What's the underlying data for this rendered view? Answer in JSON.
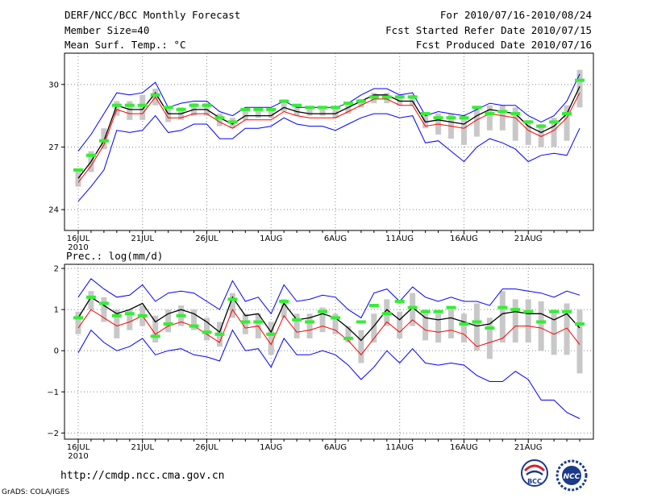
{
  "header": {
    "title": "DERF/NCC/BCC Monthly Forecast",
    "member_size": "Member Size=40",
    "variable": "Mean Surf. Temp.: °C",
    "period": "For 2010/07/16-2010/08/24",
    "start_date": "Fcst Started Refer Date 2010/07/15",
    "produced_date": "Fcst Produced Date 2010/07/16"
  },
  "precip_label": "Prec.: log(mm/d)",
  "footer": {
    "url": "http://cmdp.ncc.cma.gov.cn",
    "credit": "GrADS: COLA/IGES",
    "logo1": "BCC",
    "logo2": "NCC"
  },
  "colors": {
    "envelope": "#0000ff",
    "mean": "#000000",
    "median": "#ff0000",
    "bar": "#c8c8c8",
    "observed": "#33ee33"
  },
  "chart_data": [
    {
      "type": "line",
      "name": "Mean Surf. Temp.",
      "xlabel": "",
      "ylabel": "°C",
      "ylim": [
        23,
        31.5
      ],
      "yticks": [
        24,
        27,
        30
      ],
      "ytick_labels": [
        "24",
        "27",
        "30"
      ],
      "x_day_range": [
        1,
        40
      ],
      "xticks": [
        1,
        6,
        11,
        16,
        21,
        26,
        31,
        36
      ],
      "xtick_labels": [
        "16JUL",
        "21JUL",
        "26JUL",
        "1AUG",
        "6AUG",
        "11AUG",
        "16AUG",
        "21AUG"
      ],
      "xtick_year": "2010",
      "series": [
        {
          "name": "upper",
          "values": [
            26.8,
            27.6,
            28.6,
            29.6,
            29.5,
            29.6,
            30.1,
            28.9,
            29.1,
            29.2,
            29.2,
            28.7,
            28.5,
            28.9,
            28.9,
            28.9,
            29.2,
            28.9,
            28.9,
            28.9,
            28.9,
            29.1,
            29.5,
            29.8,
            29.8,
            29.5,
            29.6,
            28.5,
            28.7,
            28.6,
            28.5,
            28.8,
            29.1,
            29.0,
            29.0,
            28.5,
            28.2,
            28.5,
            29.2,
            30.5
          ]
        },
        {
          "name": "mean",
          "values": [
            25.5,
            26.3,
            27.3,
            29.0,
            28.8,
            28.8,
            29.6,
            28.6,
            28.6,
            28.8,
            28.8,
            28.4,
            28.1,
            28.5,
            28.5,
            28.5,
            28.9,
            28.7,
            28.6,
            28.6,
            28.6,
            28.9,
            29.2,
            29.5,
            29.5,
            29.2,
            29.2,
            28.2,
            28.3,
            28.2,
            28.1,
            28.5,
            28.8,
            28.7,
            28.6,
            28.0,
            27.7,
            28.0,
            28.6,
            29.9
          ]
        },
        {
          "name": "median",
          "values": [
            25.3,
            26.1,
            27.1,
            28.8,
            28.6,
            28.6,
            29.4,
            28.4,
            28.4,
            28.6,
            28.6,
            28.2,
            27.9,
            28.3,
            28.3,
            28.3,
            28.7,
            28.5,
            28.4,
            28.4,
            28.4,
            28.7,
            29.0,
            29.3,
            29.3,
            29.0,
            29.0,
            28.0,
            28.1,
            28.0,
            27.9,
            28.3,
            28.6,
            28.5,
            28.4,
            27.8,
            27.5,
            27.8,
            28.4,
            29.6
          ]
        },
        {
          "name": "lower",
          "values": [
            24.4,
            25.1,
            25.9,
            27.8,
            27.7,
            27.8,
            28.5,
            27.7,
            27.8,
            28.1,
            28.1,
            27.4,
            27.4,
            27.9,
            27.9,
            28.0,
            28.4,
            28.1,
            28.0,
            28.0,
            27.8,
            28.1,
            28.4,
            28.6,
            28.6,
            28.4,
            28.5,
            27.2,
            27.3,
            26.8,
            26.3,
            27.0,
            27.4,
            27.2,
            26.9,
            26.3,
            26.6,
            26.7,
            26.6,
            27.9
          ]
        },
        {
          "name": "box_high",
          "values": [
            25.9,
            26.8,
            27.9,
            29.2,
            29.2,
            29.5,
            29.8,
            28.9,
            28.9,
            29.1,
            29.1,
            28.6,
            28.4,
            28.8,
            28.8,
            28.8,
            29.2,
            28.9,
            28.9,
            28.9,
            28.9,
            29.1,
            29.3,
            29.6,
            29.6,
            29.5,
            29.5,
            28.6,
            28.6,
            28.6,
            28.5,
            28.9,
            29.0,
            29.0,
            28.9,
            28.3,
            28.1,
            28.4,
            29.0,
            30.7
          ]
        },
        {
          "name": "box_low",
          "values": [
            25.1,
            25.8,
            26.9,
            28.5,
            28.3,
            28.3,
            29.0,
            28.2,
            28.3,
            28.5,
            28.5,
            28.0,
            27.9,
            28.3,
            28.4,
            28.4,
            28.7,
            28.5,
            28.5,
            28.5,
            28.4,
            28.6,
            28.9,
            29.1,
            29.1,
            29.0,
            29.0,
            27.9,
            27.6,
            27.4,
            27.1,
            27.5,
            27.8,
            27.8,
            27.3,
            27.1,
            27.0,
            27.0,
            27.3,
            28.9
          ]
        },
        {
          "name": "observed",
          "values": [
            25.9,
            26.6,
            27.3,
            29.0,
            29.0,
            29.0,
            29.5,
            28.9,
            28.8,
            29.0,
            29.0,
            28.4,
            28.2,
            28.8,
            28.8,
            28.8,
            29.2,
            29.0,
            28.9,
            28.9,
            28.9,
            29.1,
            29.2,
            29.4,
            29.4,
            29.4,
            29.4,
            28.6,
            28.4,
            28.4,
            28.4,
            28.9,
            28.6,
            28.7,
            28.6,
            28.2,
            28.0,
            28.2,
            28.6,
            30.2
          ]
        }
      ]
    },
    {
      "type": "line",
      "name": "Prec.: log(mm/d)",
      "xlabel": "",
      "ylabel": "log(mm/d)",
      "ylim": [
        -2.15,
        2.1
      ],
      "yticks": [
        -2,
        -1,
        0,
        1,
        2
      ],
      "ytick_labels": [
        "−2",
        "−1",
        "0",
        "1",
        "2"
      ],
      "x_day_range": [
        1,
        40
      ],
      "xticks": [
        1,
        6,
        11,
        16,
        21,
        26,
        31,
        36
      ],
      "xtick_labels": [
        "16JUL",
        "21JUL",
        "26JUL",
        "1AUG",
        "6AUG",
        "11AUG",
        "16AUG",
        "21AUG"
      ],
      "xtick_year": "2010",
      "series": [
        {
          "name": "upper",
          "values": [
            1.3,
            1.75,
            1.5,
            1.3,
            1.35,
            1.6,
            1.2,
            1.4,
            1.45,
            1.4,
            1.2,
            1.0,
            1.7,
            1.2,
            1.3,
            0.9,
            1.6,
            1.2,
            1.25,
            1.35,
            1.3,
            1.0,
            0.8,
            1.4,
            1.5,
            1.2,
            1.55,
            1.3,
            1.2,
            1.3,
            1.2,
            1.2,
            1.1,
            1.5,
            1.5,
            1.45,
            1.4,
            1.3,
            1.45,
            1.35
          ]
        },
        {
          "name": "mean",
          "values": [
            0.8,
            1.3,
            1.1,
            0.9,
            1.0,
            1.15,
            0.7,
            0.9,
            1.0,
            0.9,
            0.7,
            0.45,
            1.3,
            0.85,
            0.9,
            0.45,
            1.15,
            0.75,
            0.8,
            0.9,
            0.8,
            0.55,
            0.25,
            0.6,
            1.0,
            0.75,
            1.05,
            0.8,
            0.75,
            0.8,
            0.7,
            0.6,
            0.65,
            0.9,
            0.95,
            0.9,
            0.9,
            0.75,
            0.9,
            0.55
          ]
        },
        {
          "name": "median",
          "values": [
            0.55,
            1.0,
            0.8,
            0.6,
            0.7,
            0.85,
            0.4,
            0.6,
            0.7,
            0.6,
            0.4,
            0.2,
            1.0,
            0.55,
            0.6,
            0.15,
            0.85,
            0.45,
            0.5,
            0.6,
            0.5,
            0.25,
            -0.1,
            0.3,
            0.7,
            0.45,
            0.75,
            0.5,
            0.45,
            0.5,
            0.4,
            0.1,
            0.2,
            0.3,
            0.6,
            0.6,
            0.55,
            0.4,
            0.55,
            0.15
          ]
        },
        {
          "name": "lower",
          "values": [
            -0.05,
            0.5,
            0.2,
            0.0,
            0.1,
            0.3,
            -0.1,
            0.0,
            0.05,
            -0.1,
            -0.15,
            -0.25,
            0.5,
            0.0,
            0.05,
            -0.4,
            0.3,
            -0.1,
            -0.1,
            0.0,
            -0.1,
            -0.35,
            -0.7,
            -0.4,
            0.0,
            -0.3,
            0.05,
            -0.3,
            -0.35,
            -0.3,
            -0.35,
            -0.6,
            -0.75,
            -0.75,
            -0.5,
            -0.7,
            -1.2,
            -1.2,
            -1.5,
            -1.65
          ]
        },
        {
          "name": "box_high",
          "values": [
            0.95,
            1.45,
            1.3,
            1.0,
            1.0,
            1.1,
            0.85,
            1.0,
            1.1,
            1.0,
            0.8,
            0.7,
            1.4,
            0.9,
            0.9,
            0.7,
            1.25,
            0.9,
            0.9,
            1.05,
            0.9,
            0.6,
            0.5,
            0.9,
            1.25,
            0.95,
            1.4,
            1.0,
            0.9,
            1.0,
            0.9,
            1.15,
            0.8,
            1.45,
            1.25,
            1.25,
            1.2,
            1.0,
            1.15,
            1.0
          ]
        },
        {
          "name": "box_low",
          "values": [
            0.4,
            1.0,
            0.7,
            0.3,
            0.5,
            0.6,
            0.2,
            0.45,
            0.6,
            0.5,
            0.25,
            0.1,
            0.8,
            0.4,
            0.3,
            -0.1,
            0.8,
            0.3,
            0.3,
            0.45,
            0.4,
            0.2,
            -0.3,
            0.2,
            0.6,
            0.3,
            0.6,
            0.25,
            0.2,
            0.3,
            0.2,
            0.0,
            -0.2,
            0.2,
            0.2,
            0.2,
            0.0,
            -0.1,
            -0.1,
            -0.55
          ]
        },
        {
          "name": "observed",
          "values": [
            0.8,
            1.3,
            1.15,
            0.85,
            0.9,
            0.85,
            0.35,
            0.65,
            0.85,
            0.6,
            0.45,
            0.4,
            1.25,
            0.7,
            0.7,
            0.4,
            1.2,
            0.75,
            0.7,
            0.95,
            0.8,
            0.3,
            0.7,
            1.1,
            0.9,
            1.2,
            1.05,
            0.95,
            0.95,
            1.05,
            0.65,
            0.7,
            0.55,
            1.05,
            1.0,
            0.95,
            0.7,
            0.95,
            0.95,
            0.65
          ]
        }
      ]
    }
  ]
}
